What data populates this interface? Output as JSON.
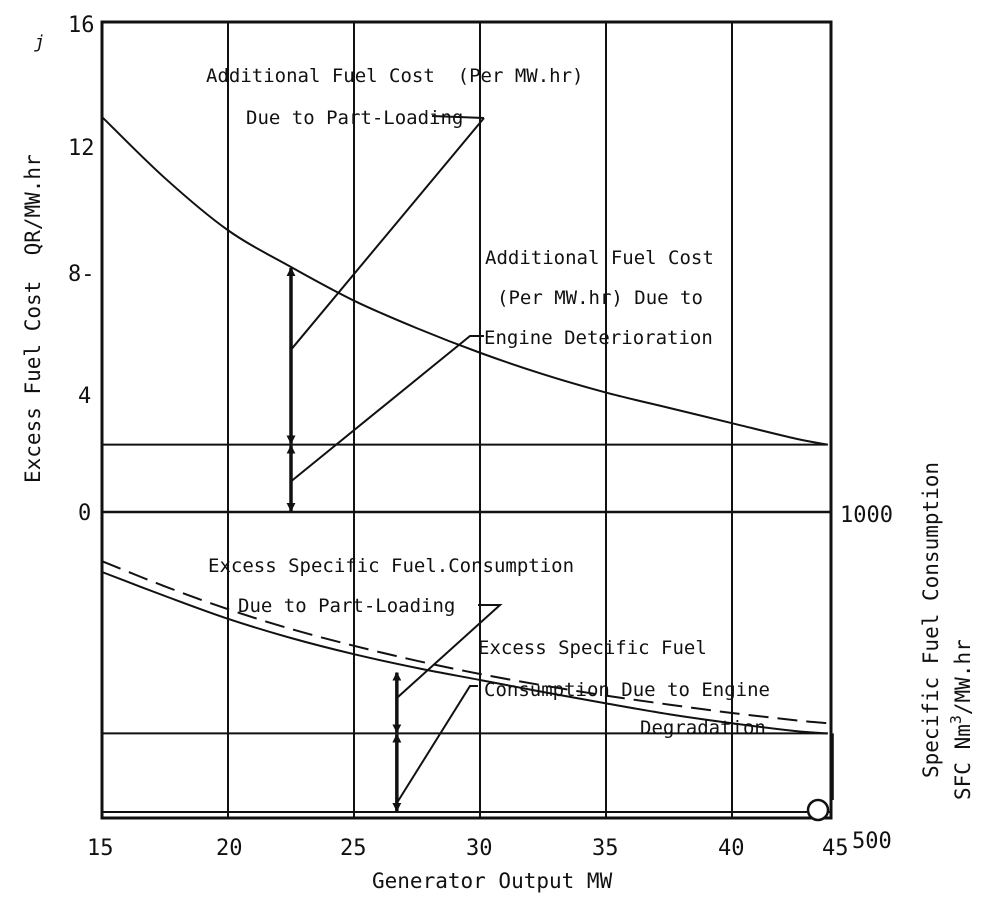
{
  "chart_data": [
    {
      "type": "line",
      "panel": "upper",
      "title": "",
      "xlabel": "Generator Output MW",
      "ylabel": "Excess Fuel Cost  QR/MW.hr",
      "xlim": [
        15,
        44
      ],
      "ylim": [
        0,
        16
      ],
      "x_ticks": [
        "15",
        "20",
        "25",
        "30",
        "35",
        "40",
        "45"
      ],
      "y_ticks": [
        "0",
        "4",
        "8-",
        "12",
        "16"
      ],
      "grid": "vertical",
      "series": [
        {
          "name": "",
          "x": [
            15,
            17.5,
            20,
            22.5,
            25,
            27.5,
            30,
            32.5,
            35,
            37.5,
            40,
            42.5,
            43.8
          ],
          "y": [
            12.9,
            10.9,
            9.2,
            8.0,
            6.9,
            6.0,
            5.2,
            4.5,
            3.9,
            3.4,
            2.9,
            2.4,
            2.2
          ]
        },
        {
          "name": "",
          "x": [
            15,
            43.8
          ],
          "y": [
            2.2,
            2.2
          ]
        }
      ],
      "markers": [
        {
          "x": 22.5,
          "y_from": 2.2,
          "y_to": 8.0
        },
        {
          "x": 22.5,
          "y_from": 0,
          "y_to": 2.2
        }
      ],
      "annotations": [
        {
          "lines": [
            "Additional Fuel Cost  (Per MW.hr)",
            "Due to Part-Loading"
          ],
          "points_to": {
            "x": 22.5,
            "y": 5.3
          }
        },
        {
          "lines": [
            "Additional Fuel Cost",
            "(Per MW.hr) Due to",
            "Engine Deterioration"
          ],
          "points_to": {
            "x": 22.5,
            "y": 1.0
          }
        }
      ]
    },
    {
      "type": "line",
      "panel": "lower",
      "title": "",
      "xlabel": "Generator Output MW",
      "ylabel": "Specific Fuel Consumption  SFC Nm3/MW.hr",
      "ylabel_lines": [
        "Specific Fuel Consumption",
        "SFC Nm",
        "3",
        "/MW.hr"
      ],
      "xlim": [
        15,
        44
      ],
      "ylim": [
        500,
        1000
      ],
      "y_ticks": [
        "500",
        "1000"
      ],
      "series": [
        {
          "name": "",
          "style": "solid",
          "x": [
            15,
            17.5,
            20,
            22.5,
            25,
            27.5,
            30,
            32.5,
            35,
            37.5,
            40,
            42.5,
            43.8
          ],
          "y": [
            900,
            860,
            822,
            790,
            763,
            740,
            720,
            700,
            681,
            663,
            648,
            635,
            631
          ]
        },
        {
          "name": "",
          "style": "dashed",
          "x": [
            15,
            17.5,
            20,
            22.5,
            25,
            27.5,
            30,
            32.5,
            35,
            37.5,
            40,
            42.5,
            43.8
          ],
          "y": [
            918,
            876,
            838,
            805,
            777,
            752,
            730,
            711,
            694,
            679,
            665,
            653,
            648
          ]
        },
        {
          "name": "",
          "style": "solid",
          "x": [
            15,
            43.8
          ],
          "y": [
            631,
            631
          ]
        }
      ],
      "markers": [
        {
          "x": 26.7,
          "y_from": 631,
          "y_to": 734
        },
        {
          "x": 26.7,
          "y_from": 500,
          "y_to": 631
        }
      ],
      "annotations": [
        {
          "lines": [
            "Excess Specific Fuel.Consumption",
            "Due to Part-Loading"
          ],
          "points_to": {
            "x": 26.7,
            "y": 690
          }
        },
        {
          "lines": [
            "Excess Specific Fuel",
            "Consumption Due to Engine",
            "Degradation"
          ],
          "points_to": {
            "x": 26.7,
            "y": 515
          }
        }
      ]
    }
  ],
  "stray_marks": [
    "j"
  ]
}
